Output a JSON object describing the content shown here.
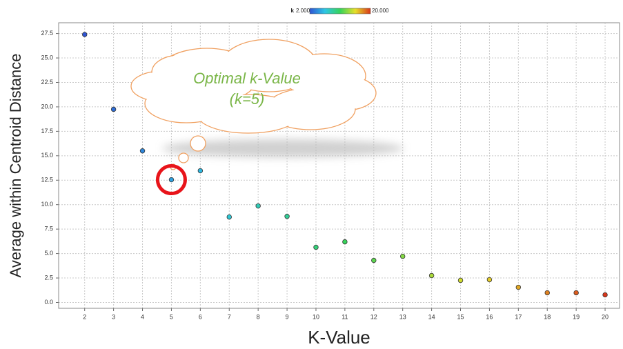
{
  "chart_data": {
    "type": "scatter",
    "x_label": "K-Value",
    "y_label": "Average within Centroid Distance",
    "x": [
      2,
      3,
      4,
      5,
      6,
      7,
      8,
      9,
      10,
      11,
      12,
      13,
      14,
      15,
      16,
      17,
      18,
      19,
      20
    ],
    "values": [
      27.4,
      19.75,
      15.5,
      12.55,
      13.47,
      8.74,
      9.87,
      8.8,
      5.64,
      6.2,
      4.3,
      4.72,
      2.75,
      2.26,
      2.33,
      1.55,
      0.99,
      0.99,
      0.78
    ],
    "xlim": [
      1.1,
      20.5
    ],
    "ylim": [
      -0.6,
      28.6
    ],
    "xticks": [
      2,
      3,
      4,
      5,
      6,
      7,
      8,
      9,
      10,
      11,
      12,
      13,
      14,
      15,
      16,
      17,
      18,
      19,
      20
    ],
    "yticks": [
      {
        "value": 0,
        "label": "0.0"
      },
      2.5,
      {
        "value": 5,
        "label": "5.0"
      },
      7.5,
      {
        "value": 10,
        "label": "10.0"
      },
      12.5,
      {
        "value": 15,
        "label": "15.0"
      },
      17.5,
      {
        "value": 20,
        "label": "20.0"
      },
      22.5,
      {
        "value": 25,
        "label": "25.0"
      },
      27.5
    ],
    "grid": true,
    "color_by": "k",
    "color_range": [
      {
        "value": 2,
        "label": "2.000"
      },
      {
        "value": 20,
        "label": "20.000"
      }
    ],
    "colormap": [
      "#2f55d4",
      "#2ec6e4",
      "#36d45a",
      "#e6df2a",
      "#d8361a"
    ],
    "annotation": {
      "lines": [
        "Optimal k-Value",
        "(k=5)"
      ],
      "color": "#7ab648",
      "highlight_x": 5,
      "highlight_color": "#e8141a"
    }
  }
}
